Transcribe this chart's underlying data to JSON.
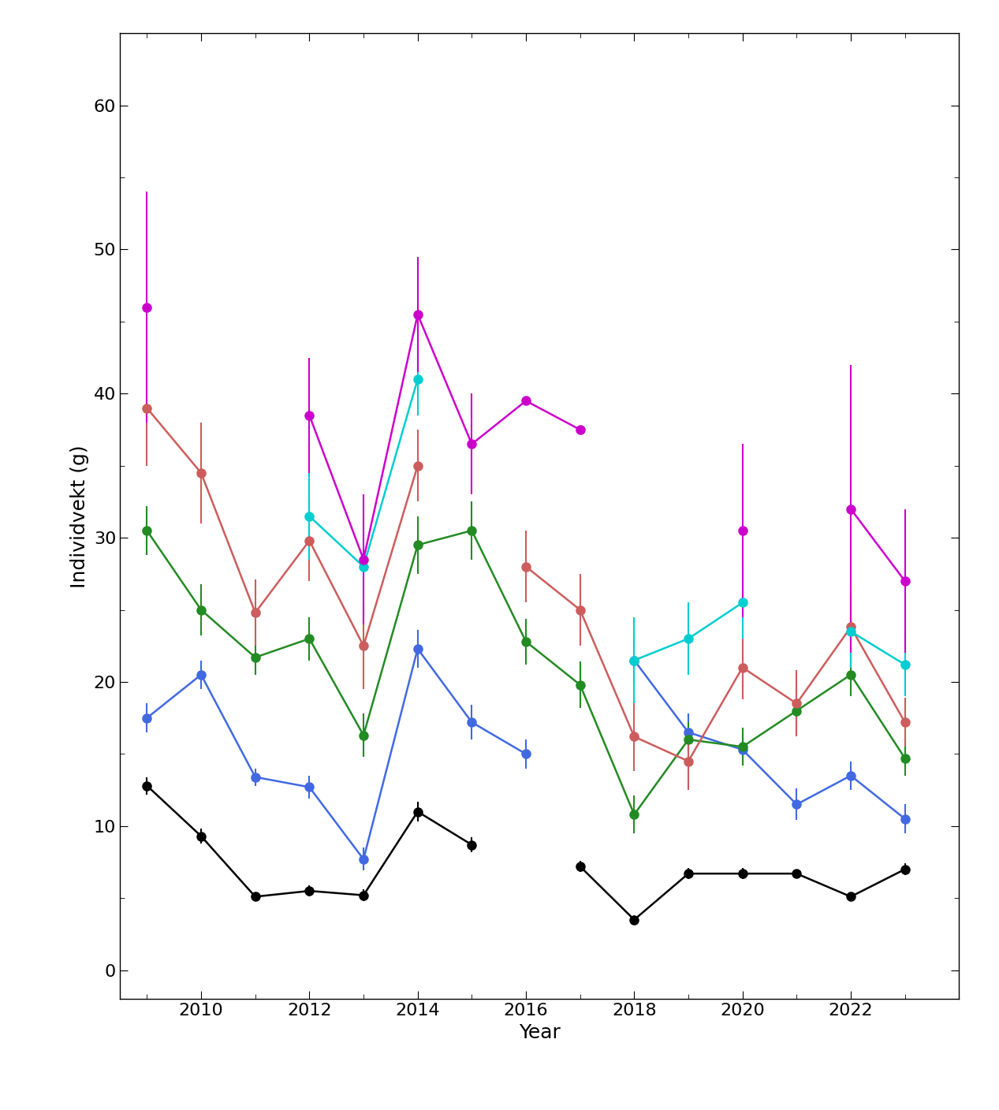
{
  "xlabel": "Year",
  "ylabel": "Individvekt (g)",
  "ylim": [
    -2,
    65
  ],
  "yticks": [
    0,
    10,
    20,
    30,
    40,
    50,
    60
  ],
  "xlim": [
    2008.5,
    2024.0
  ],
  "xticks": [
    2010,
    2012,
    2014,
    2016,
    2018,
    2020,
    2022
  ],
  "series": {
    "age1": {
      "color": "#000000",
      "data": [
        [
          2009,
          12.8,
          12.2,
          13.4
        ],
        [
          2010,
          9.3,
          8.8,
          9.8
        ],
        [
          2011,
          5.1,
          4.8,
          5.4
        ],
        [
          2012,
          5.5,
          5.1,
          5.9
        ],
        [
          2013,
          5.2,
          4.8,
          5.6
        ],
        [
          2014,
          11.0,
          10.3,
          11.7
        ],
        [
          2015,
          8.7,
          8.2,
          9.2
        ],
        [
          2017,
          7.2,
          6.8,
          7.6
        ],
        [
          2018,
          3.5,
          3.2,
          3.8
        ],
        [
          2019,
          6.7,
          6.3,
          7.1
        ],
        [
          2020,
          6.7,
          6.3,
          7.1
        ],
        [
          2021,
          6.7,
          6.4,
          7.0
        ],
        [
          2022,
          5.1,
          4.8,
          5.4
        ],
        [
          2023,
          7.0,
          6.6,
          7.4
        ]
      ]
    },
    "age2": {
      "color": "#4169E1",
      "data": [
        [
          2009,
          17.5,
          16.5,
          18.5
        ],
        [
          2010,
          20.5,
          19.5,
          21.5
        ],
        [
          2011,
          13.4,
          12.8,
          14.0
        ],
        [
          2012,
          12.7,
          11.9,
          13.5
        ],
        [
          2013,
          7.7,
          6.9,
          8.5
        ],
        [
          2014,
          22.3,
          21.0,
          23.6
        ],
        [
          2015,
          17.2,
          16.0,
          18.4
        ],
        [
          2016,
          15.0,
          14.0,
          16.0
        ],
        [
          2018,
          21.5,
          20.0,
          23.0
        ],
        [
          2019,
          16.5,
          15.2,
          17.8
        ],
        [
          2020,
          15.3,
          14.2,
          16.4
        ],
        [
          2021,
          11.5,
          10.4,
          12.6
        ],
        [
          2022,
          13.5,
          12.5,
          14.5
        ],
        [
          2023,
          10.5,
          9.5,
          11.5
        ]
      ]
    },
    "age3": {
      "color": "#228B22",
      "data": [
        [
          2009,
          30.5,
          28.8,
          32.2
        ],
        [
          2010,
          25.0,
          23.2,
          26.8
        ],
        [
          2011,
          21.7,
          20.5,
          22.9
        ],
        [
          2012,
          23.0,
          21.5,
          24.5
        ],
        [
          2013,
          16.3,
          14.8,
          17.8
        ],
        [
          2014,
          29.5,
          27.5,
          31.5
        ],
        [
          2015,
          30.5,
          28.5,
          32.5
        ],
        [
          2016,
          22.8,
          21.2,
          24.4
        ],
        [
          2017,
          19.8,
          18.2,
          21.4
        ],
        [
          2018,
          10.8,
          9.5,
          12.1
        ],
        [
          2019,
          16.0,
          14.8,
          17.2
        ],
        [
          2020,
          15.5,
          14.2,
          16.8
        ],
        [
          2021,
          18.0,
          16.5,
          19.5
        ],
        [
          2022,
          20.5,
          19.0,
          22.0
        ],
        [
          2023,
          14.7,
          13.5,
          16.0
        ]
      ]
    },
    "age4": {
      "color": "#CD5C5C",
      "data": [
        [
          2009,
          39.0,
          35.0,
          43.0
        ],
        [
          2010,
          34.5,
          31.0,
          38.0
        ],
        [
          2011,
          24.8,
          22.5,
          27.1
        ],
        [
          2012,
          29.8,
          27.0,
          32.6
        ],
        [
          2013,
          22.5,
          19.5,
          25.5
        ],
        [
          2014,
          35.0,
          32.5,
          37.5
        ],
        [
          2016,
          28.0,
          25.5,
          30.5
        ],
        [
          2017,
          25.0,
          22.5,
          27.5
        ],
        [
          2018,
          16.2,
          13.8,
          18.6
        ],
        [
          2019,
          14.5,
          12.5,
          16.5
        ],
        [
          2020,
          21.0,
          18.8,
          23.2
        ],
        [
          2021,
          18.5,
          16.2,
          20.8
        ],
        [
          2022,
          23.8,
          21.0,
          26.6
        ],
        [
          2023,
          17.2,
          15.5,
          18.9
        ]
      ]
    },
    "age5": {
      "color": "#00CED1",
      "data": [
        [
          2012,
          31.5,
          28.5,
          34.5
        ],
        [
          2013,
          28.0,
          24.5,
          31.5
        ],
        [
          2014,
          41.0,
          38.5,
          43.5
        ],
        [
          2018,
          21.5,
          18.5,
          24.5
        ],
        [
          2019,
          23.0,
          20.5,
          25.5
        ],
        [
          2020,
          25.5,
          23.0,
          28.0
        ],
        [
          2022,
          23.5,
          21.0,
          26.0
        ],
        [
          2023,
          21.2,
          19.0,
          23.4
        ]
      ]
    },
    "age6": {
      "color": "#CC00CC",
      "data": [
        [
          2009,
          46.0,
          38.0,
          54.0
        ],
        [
          2012,
          38.5,
          34.5,
          42.5
        ],
        [
          2013,
          28.5,
          24.0,
          33.0
        ],
        [
          2014,
          45.5,
          41.5,
          49.5
        ],
        [
          2015,
          36.5,
          33.0,
          40.0
        ],
        [
          2016,
          39.5,
          null,
          null
        ],
        [
          2017,
          37.5,
          null,
          null
        ],
        [
          2020,
          30.5,
          24.5,
          36.5
        ],
        [
          2022,
          32.0,
          22.0,
          42.0
        ],
        [
          2023,
          27.0,
          22.0,
          32.0
        ]
      ]
    }
  }
}
